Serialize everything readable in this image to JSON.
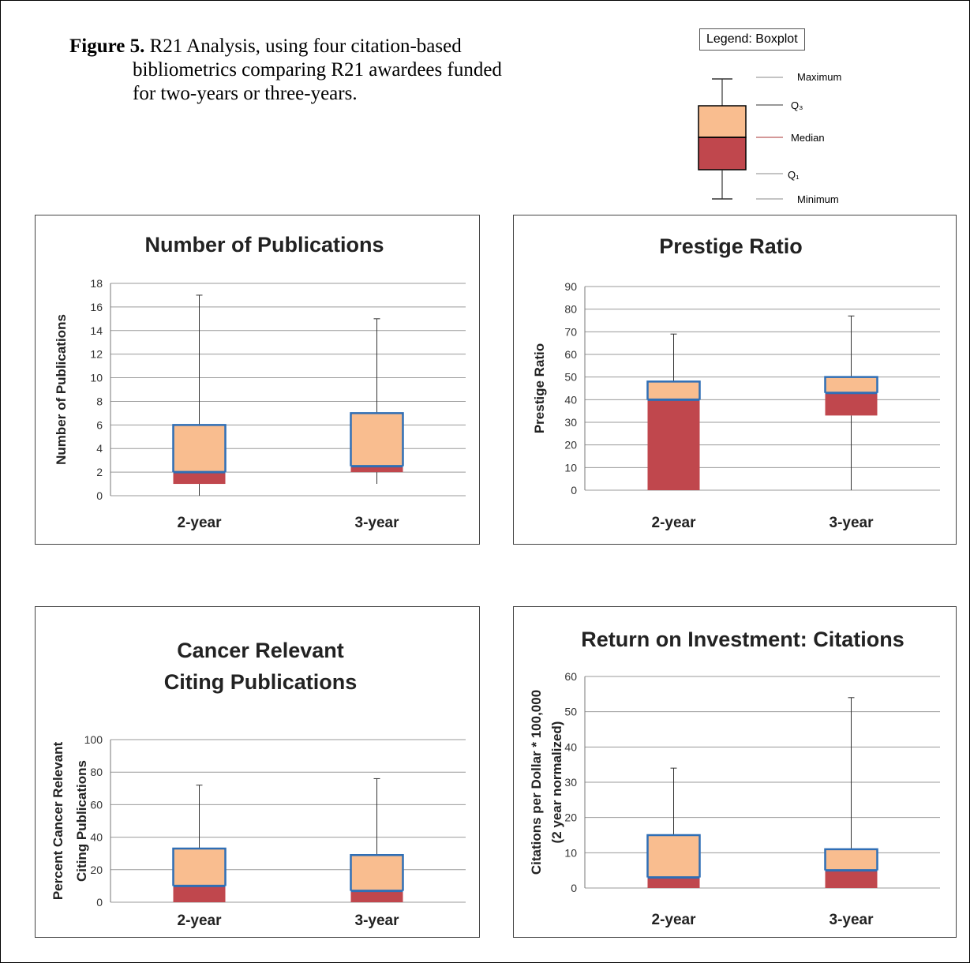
{
  "figure": {
    "label": "Figure 5.",
    "caption_line1": "R21 Analysis, using four citation-based",
    "caption_line2": "bibliometrics comparing R21 awardees funded",
    "caption_line3": "for two-years or three-years."
  },
  "legend": {
    "title": "Legend: Boxplot",
    "items": [
      "Maximum",
      "Q₃",
      "Median",
      "Q₁",
      "Minimum"
    ]
  },
  "colors": {
    "upper_box": "#f9bd8f",
    "lower_box": "#c0474d",
    "box_edge": "#2f6eb5",
    "median_line": "#2f6eb5",
    "grid": "#9a9a9a",
    "whisker": "#333333"
  },
  "chart_data": [
    {
      "type": "boxplot",
      "title": "Number of Publications",
      "ylabel": "Number of Publications",
      "categories": [
        "2-year",
        "3-year"
      ],
      "ylim": [
        0,
        18
      ],
      "yticks": [
        0,
        2,
        4,
        6,
        8,
        10,
        12,
        14,
        16,
        18
      ],
      "grid": true,
      "boxes": [
        {
          "min": 0,
          "q1": 1,
          "median": 2,
          "q3": 6,
          "max": 17
        },
        {
          "min": 1,
          "q1": 2,
          "median": 2.5,
          "q3": 7,
          "max": 15
        }
      ]
    },
    {
      "type": "boxplot",
      "title": "Prestige Ratio",
      "ylabel": "Prestige Ratio",
      "categories": [
        "2-year",
        "3-year"
      ],
      "ylim": [
        0,
        90
      ],
      "yticks": [
        0,
        10,
        20,
        30,
        40,
        50,
        60,
        70,
        80,
        90
      ],
      "grid": true,
      "boxes": [
        {
          "min": 0,
          "q1": 0,
          "median": 40,
          "q3": 48,
          "max": 69
        },
        {
          "min": 0,
          "q1": 33,
          "median": 43,
          "q3": 50,
          "max": 77
        }
      ]
    },
    {
      "type": "boxplot",
      "title": [
        "Cancer Relevant",
        "Citing Publications"
      ],
      "ylabel": [
        "Percent Cancer Relevant",
        "Citing Publications"
      ],
      "categories": [
        "2-year",
        "3-year"
      ],
      "ylim": [
        0,
        100
      ],
      "yticks": [
        0,
        20,
        40,
        60,
        80,
        100
      ],
      "grid": true,
      "boxes": [
        {
          "min": 0,
          "q1": 0,
          "median": 10,
          "q3": 33,
          "max": 72
        },
        {
          "min": 0,
          "q1": 0,
          "median": 7,
          "q3": 29,
          "max": 76
        }
      ]
    },
    {
      "type": "boxplot",
      "title": "Return on Investment: Citations",
      "ylabel": [
        "Citations per Dollar  * 100,000",
        "(2 year normalized)"
      ],
      "categories": [
        "2-year",
        "3-year"
      ],
      "ylim": [
        0,
        60
      ],
      "yticks": [
        0,
        10,
        20,
        30,
        40,
        50,
        60
      ],
      "grid": true,
      "boxes": [
        {
          "min": 0,
          "q1": 0,
          "median": 3,
          "q3": 15,
          "max": 34
        },
        {
          "min": 0,
          "q1": 0,
          "median": 5,
          "q3": 11,
          "max": 54
        }
      ]
    }
  ]
}
